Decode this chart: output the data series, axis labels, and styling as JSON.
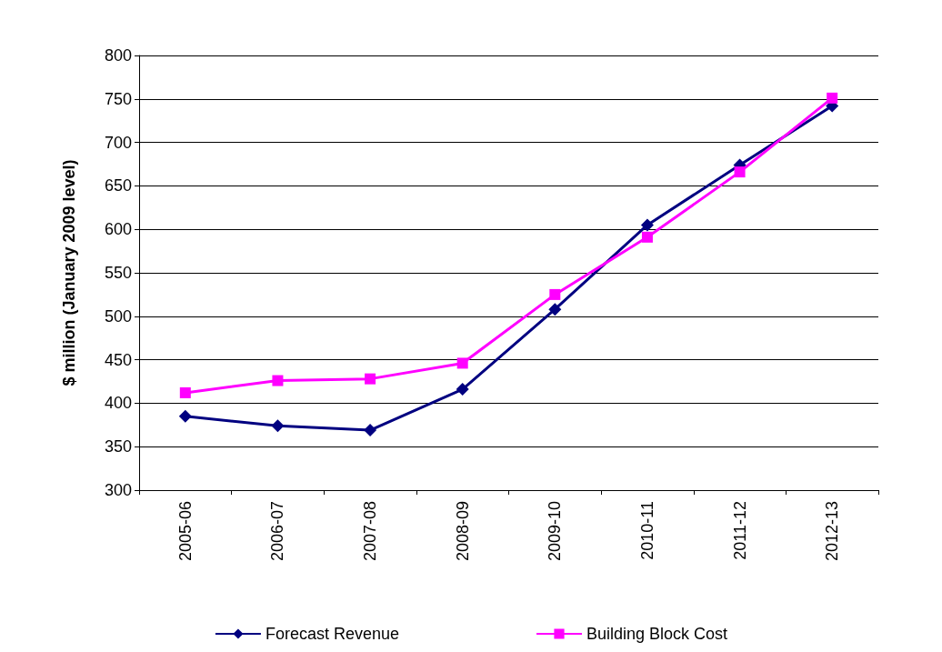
{
  "chart_data": {
    "type": "line",
    "ylabel": "$ million (January 2009 level)",
    "categories": [
      "2005-06",
      "2006-07",
      "2007-08",
      "2008-09",
      "2009-10",
      "2010-11",
      "2011-12",
      "2012-13"
    ],
    "series": [
      {
        "name": "Forecast Revenue",
        "color": "#000080",
        "marker": "diamond",
        "values": [
          385,
          374,
          369,
          416,
          508,
          605,
          674,
          742
        ]
      },
      {
        "name": "Building Block Cost",
        "color": "#ff00ff",
        "marker": "square",
        "values": [
          412,
          426,
          428,
          446,
          525,
          591,
          666,
          751
        ]
      }
    ],
    "ylim": [
      300,
      800
    ],
    "yticks": [
      300,
      350,
      400,
      450,
      500,
      550,
      600,
      650,
      700,
      750,
      800
    ],
    "grid": "y",
    "legend": "bottom",
    "line_style": "solid"
  }
}
